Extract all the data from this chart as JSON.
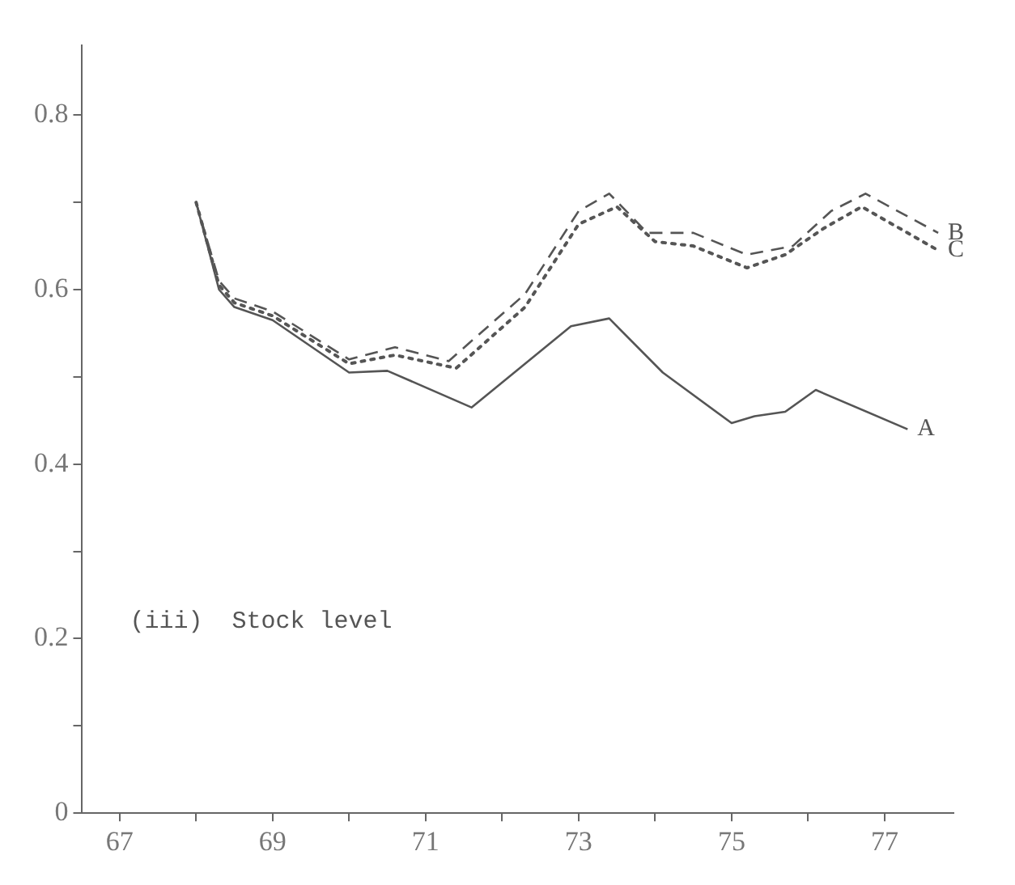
{
  "chart_data": {
    "type": "line",
    "title": "(iii)  Stock level",
    "xlim": [
      66.5,
      77.9
    ],
    "ylim": [
      0,
      0.88
    ],
    "xticks": [
      67,
      {
        "value": 68,
        "label": null
      },
      69,
      {
        "value": 70,
        "label": null
      },
      71,
      {
        "value": 72,
        "label": null
      },
      73,
      {
        "value": 74,
        "label": null
      },
      75,
      {
        "value": 76,
        "label": null
      },
      77
    ],
    "yticks": [
      0,
      {
        "value": 0.1,
        "label": null
      },
      0.2,
      {
        "value": 0.3,
        "label": null
      },
      0.4,
      {
        "value": 0.5,
        "label": null
      },
      0.6,
      {
        "value": 0.7,
        "label": null
      },
      0.8
    ],
    "grid": false,
    "legend": false,
    "marker": "none",
    "series": [
      {
        "name": "B",
        "color": "#555555",
        "line_style": "dashed",
        "x": [
          68.0,
          68.3,
          68.5,
          69.0,
          70.0,
          70.6,
          71.3,
          72.3,
          73.0,
          73.4,
          73.9,
          74.5,
          75.2,
          75.8,
          76.3,
          76.75,
          77.7
        ],
        "values": [
          0.7,
          0.61,
          0.59,
          0.575,
          0.52,
          0.534,
          0.518,
          0.595,
          0.69,
          0.71,
          0.665,
          0.665,
          0.64,
          0.65,
          0.69,
          0.71,
          0.665
        ]
      },
      {
        "name": "C",
        "color": "#555555",
        "line_style": "dotted",
        "x": [
          68.0,
          68.3,
          68.5,
          69.0,
          70.0,
          70.6,
          71.4,
          72.3,
          73.0,
          73.5,
          74.0,
          74.5,
          75.2,
          75.7,
          76.2,
          76.7,
          77.7
        ],
        "values": [
          0.7,
          0.605,
          0.585,
          0.57,
          0.515,
          0.525,
          0.51,
          0.58,
          0.675,
          0.695,
          0.655,
          0.65,
          0.625,
          0.64,
          0.67,
          0.695,
          0.645
        ]
      },
      {
        "name": "A",
        "color": "#555555",
        "line_style": "solid",
        "x": [
          68.0,
          68.3,
          68.5,
          69.0,
          70.0,
          70.5,
          71.6,
          72.9,
          73.4,
          74.1,
          75.0,
          75.3,
          75.7,
          76.1,
          77.3
        ],
        "values": [
          0.7,
          0.6,
          0.58,
          0.565,
          0.505,
          0.507,
          0.465,
          0.558,
          0.567,
          0.505,
          0.447,
          0.455,
          0.46,
          0.485,
          0.44
        ]
      }
    ]
  }
}
